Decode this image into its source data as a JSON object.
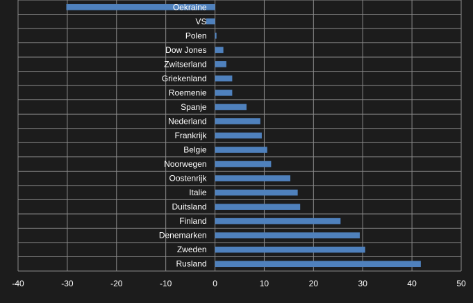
{
  "chart_data": {
    "type": "bar",
    "orientation": "horizontal",
    "categories": [
      "Oekraine",
      "VS",
      "Polen",
      "Dow Jones",
      "Zwitserland",
      "Griekenland",
      "Roemenie",
      "Spanje",
      "Nederland",
      "Frankrijk",
      "Belgie",
      "Noorwegen",
      "Oostenrijk",
      "Italie",
      "Duitsland",
      "Finland",
      "Denemarken",
      "Zweden",
      "Rusland"
    ],
    "values": [
      -30.2,
      -1.8,
      0.3,
      1.7,
      2.3,
      3.5,
      3.5,
      6.4,
      9.2,
      9.5,
      10.6,
      11.4,
      15.3,
      16.8,
      17.3,
      25.5,
      29.4,
      30.5,
      41.8
    ],
    "title": "",
    "xlabel": "",
    "ylabel": "",
    "xlim": [
      -40,
      50
    ],
    "xticks": [
      "-40",
      "-30",
      "-20",
      "-10",
      "0",
      "10",
      "20",
      "30",
      "40",
      "50"
    ],
    "grid": true,
    "legend": "none",
    "colors": {
      "bar": "#4f81bd",
      "background": "#1c1c1c",
      "gridline": "#8c8c8c",
      "text": "#ffffff"
    }
  }
}
